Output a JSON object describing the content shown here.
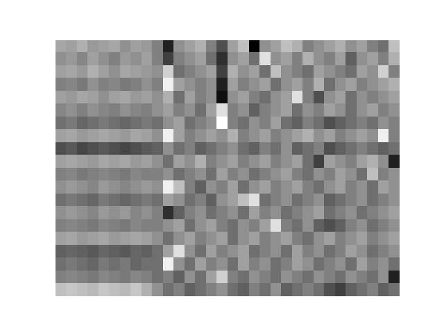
{
  "chart_data": {
    "type": "heatmap",
    "color": "gray",
    "tick_labels": false,
    "grid": false,
    "cells": [
      [
        0.62,
        0.6,
        0.65,
        0.58,
        0.6,
        0.62,
        0.55,
        0.6,
        0.58,
        0.5,
        0.2,
        0.55,
        0.6,
        0.65,
        0.5,
        0.35,
        0.6,
        0.7,
        0.1,
        0.55,
        0.6,
        0.7,
        0.65,
        0.5,
        0.55,
        0.6,
        0.65,
        0.55,
        0.6,
        0.5,
        0.45,
        0.7
      ],
      [
        0.55,
        0.58,
        0.52,
        0.6,
        0.55,
        0.5,
        0.58,
        0.55,
        0.6,
        0.5,
        0.3,
        0.5,
        0.55,
        0.6,
        0.45,
        0.25,
        0.55,
        0.6,
        0.45,
        0.8,
        0.55,
        0.6,
        0.5,
        0.65,
        0.55,
        0.5,
        0.6,
        0.4,
        0.55,
        0.6,
        0.5,
        0.65
      ],
      [
        0.6,
        0.62,
        0.58,
        0.65,
        0.6,
        0.55,
        0.62,
        0.6,
        0.58,
        0.55,
        0.75,
        0.45,
        0.5,
        0.55,
        0.6,
        0.3,
        0.65,
        0.55,
        0.6,
        0.45,
        0.7,
        0.55,
        0.5,
        0.45,
        0.6,
        0.55,
        0.5,
        0.45,
        0.6,
        0.55,
        0.75,
        0.5
      ],
      [
        0.5,
        0.52,
        0.48,
        0.55,
        0.5,
        0.52,
        0.48,
        0.5,
        0.55,
        0.5,
        0.85,
        0.6,
        0.55,
        0.5,
        0.55,
        0.2,
        0.6,
        0.5,
        0.55,
        0.6,
        0.45,
        0.55,
        0.6,
        0.5,
        0.65,
        0.45,
        0.55,
        0.6,
        0.5,
        0.55,
        0.6,
        0.65
      ],
      [
        0.6,
        0.58,
        0.62,
        0.6,
        0.55,
        0.6,
        0.62,
        0.58,
        0.6,
        0.55,
        0.65,
        0.45,
        0.6,
        0.5,
        0.55,
        0.15,
        0.55,
        0.6,
        0.5,
        0.45,
        0.55,
        0.6,
        0.8,
        0.5,
        0.35,
        0.55,
        0.6,
        0.45,
        0.55,
        0.5,
        0.55,
        0.6
      ],
      [
        0.52,
        0.55,
        0.5,
        0.55,
        0.52,
        0.5,
        0.55,
        0.52,
        0.5,
        0.55,
        0.6,
        0.5,
        0.55,
        0.45,
        0.6,
        0.8,
        0.5,
        0.55,
        0.4,
        0.5,
        0.55,
        0.6,
        0.45,
        0.55,
        0.5,
        0.6,
        0.55,
        0.45,
        0.55,
        0.6,
        0.5,
        0.55
      ],
      [
        0.45,
        0.48,
        0.42,
        0.45,
        0.48,
        0.45,
        0.42,
        0.45,
        0.48,
        0.45,
        0.55,
        0.6,
        0.45,
        0.5,
        0.55,
        0.9,
        0.5,
        0.45,
        0.55,
        0.5,
        0.6,
        0.45,
        0.4,
        0.5,
        0.45,
        0.35,
        0.4,
        0.45,
        0.5,
        0.45,
        0.55,
        0.5
      ],
      [
        0.6,
        0.62,
        0.58,
        0.6,
        0.62,
        0.6,
        0.58,
        0.62,
        0.6,
        0.55,
        0.85,
        0.6,
        0.5,
        0.55,
        0.6,
        0.55,
        0.65,
        0.5,
        0.55,
        0.6,
        0.5,
        0.55,
        0.6,
        0.65,
        0.55,
        0.6,
        0.5,
        0.55,
        0.6,
        0.55,
        0.85,
        0.5
      ],
      [
        0.35,
        0.38,
        0.32,
        0.35,
        0.38,
        0.35,
        0.32,
        0.35,
        0.38,
        0.4,
        0.55,
        0.45,
        0.5,
        0.4,
        0.45,
        0.5,
        0.55,
        0.45,
        0.4,
        0.5,
        0.45,
        0.55,
        0.4,
        0.45,
        0.5,
        0.35,
        0.4,
        0.45,
        0.5,
        0.45,
        0.4,
        0.45
      ],
      [
        0.6,
        0.62,
        0.6,
        0.58,
        0.62,
        0.6,
        0.62,
        0.58,
        0.6,
        0.55,
        0.45,
        0.6,
        0.55,
        0.65,
        0.5,
        0.55,
        0.6,
        0.5,
        0.55,
        0.6,
        0.5,
        0.55,
        0.6,
        0.45,
        0.3,
        0.6,
        0.55,
        0.5,
        0.6,
        0.65,
        0.55,
        0.2
      ],
      [
        0.5,
        0.52,
        0.48,
        0.5,
        0.52,
        0.5,
        0.48,
        0.52,
        0.5,
        0.5,
        0.55,
        0.45,
        0.5,
        0.55,
        0.45,
        0.6,
        0.5,
        0.55,
        0.45,
        0.5,
        0.55,
        0.6,
        0.5,
        0.45,
        0.55,
        0.5,
        0.6,
        0.55,
        0.45,
        0.7,
        0.5,
        0.55
      ],
      [
        0.55,
        0.58,
        0.55,
        0.52,
        0.58,
        0.55,
        0.52,
        0.55,
        0.58,
        0.55,
        0.85,
        0.7,
        0.5,
        0.4,
        0.55,
        0.5,
        0.6,
        0.45,
        0.55,
        0.6,
        0.5,
        0.55,
        0.6,
        0.5,
        0.45,
        0.55,
        0.6,
        0.5,
        0.55,
        0.45,
        0.6,
        0.55
      ],
      [
        0.45,
        0.48,
        0.45,
        0.42,
        0.48,
        0.45,
        0.42,
        0.45,
        0.48,
        0.45,
        0.6,
        0.55,
        0.45,
        0.5,
        0.4,
        0.55,
        0.6,
        0.7,
        0.8,
        0.45,
        0.5,
        0.55,
        0.45,
        0.5,
        0.55,
        0.4,
        0.45,
        0.5,
        0.55,
        0.45,
        0.5,
        0.55
      ],
      [
        0.55,
        0.58,
        0.55,
        0.52,
        0.58,
        0.55,
        0.58,
        0.52,
        0.55,
        0.5,
        0.25,
        0.4,
        0.5,
        0.55,
        0.45,
        0.5,
        0.55,
        0.45,
        0.6,
        0.5,
        0.55,
        0.45,
        0.5,
        0.55,
        0.6,
        0.45,
        0.5,
        0.55,
        0.45,
        0.5,
        0.55,
        0.6
      ],
      [
        0.5,
        0.52,
        0.5,
        0.48,
        0.52,
        0.5,
        0.48,
        0.52,
        0.5,
        0.5,
        0.55,
        0.6,
        0.45,
        0.55,
        0.6,
        0.5,
        0.45,
        0.55,
        0.5,
        0.6,
        0.8,
        0.5,
        0.45,
        0.55,
        0.4,
        0.35,
        0.4,
        0.5,
        0.55,
        0.45,
        0.5,
        0.55
      ],
      [
        0.6,
        0.62,
        0.58,
        0.6,
        0.62,
        0.58,
        0.6,
        0.62,
        0.6,
        0.55,
        0.45,
        0.55,
        0.6,
        0.5,
        0.55,
        0.6,
        0.45,
        0.55,
        0.6,
        0.5,
        0.55,
        0.6,
        0.5,
        0.45,
        0.55,
        0.6,
        0.5,
        0.55,
        0.6,
        0.5,
        0.55,
        0.6
      ],
      [
        0.4,
        0.42,
        0.4,
        0.38,
        0.42,
        0.4,
        0.38,
        0.42,
        0.4,
        0.45,
        0.6,
        0.8,
        0.55,
        0.45,
        0.6,
        0.5,
        0.55,
        0.6,
        0.45,
        0.5,
        0.55,
        0.45,
        0.6,
        0.5,
        0.55,
        0.45,
        0.5,
        0.6,
        0.55,
        0.45,
        0.5,
        0.55
      ],
      [
        0.45,
        0.48,
        0.45,
        0.42,
        0.48,
        0.45,
        0.48,
        0.42,
        0.45,
        0.45,
        0.85,
        0.55,
        0.45,
        0.6,
        0.5,
        0.55,
        0.45,
        0.6,
        0.5,
        0.55,
        0.45,
        0.5,
        0.6,
        0.55,
        0.45,
        0.5,
        0.55,
        0.45,
        0.6,
        0.5,
        0.55,
        0.45
      ],
      [
        0.5,
        0.52,
        0.5,
        0.48,
        0.52,
        0.5,
        0.48,
        0.52,
        0.5,
        0.45,
        0.5,
        0.4,
        0.55,
        0.45,
        0.6,
        0.75,
        0.5,
        0.45,
        0.55,
        0.5,
        0.45,
        0.55,
        0.5,
        0.45,
        0.55,
        0.5,
        0.45,
        0.55,
        0.5,
        0.45,
        0.55,
        0.2
      ],
      [
        0.7,
        0.72,
        0.7,
        0.68,
        0.72,
        0.7,
        0.68,
        0.72,
        0.65,
        0.55,
        0.45,
        0.5,
        0.4,
        0.45,
        0.5,
        0.55,
        0.45,
        0.4,
        0.5,
        0.45,
        0.55,
        0.4,
        0.45,
        0.5,
        0.45,
        0.35,
        0.3,
        0.4,
        0.45,
        0.5,
        0.4,
        0.45
      ]
    ]
  }
}
